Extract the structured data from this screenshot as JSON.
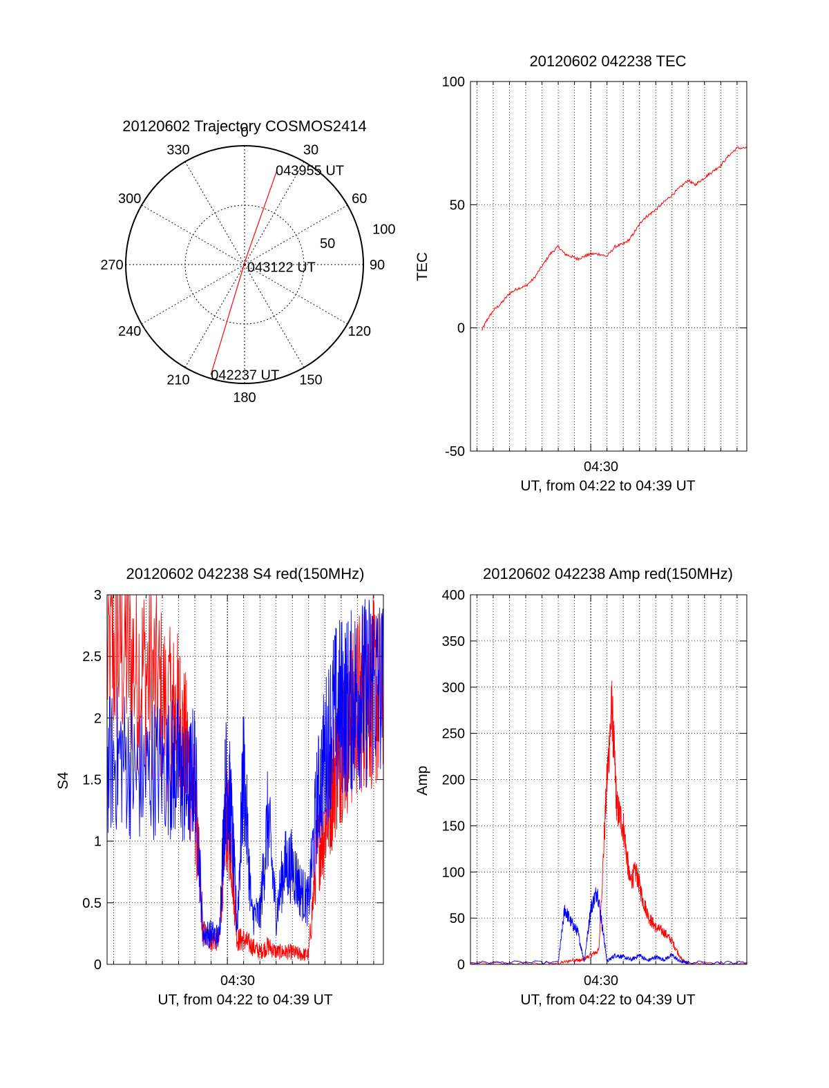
{
  "colors": {
    "red_series": "#ff0000",
    "blue_series": "#0000ff",
    "axes": "#000000",
    "grid": "#000000"
  },
  "chart_data": [
    {
      "id": "trajectory",
      "type": "polar",
      "title": "20120602 Trajectory COSMOS2414",
      "angle_labels": [
        "0",
        "30",
        "60",
        "90",
        "120",
        "150",
        "180",
        "210",
        "240",
        "270",
        "300",
        "330"
      ],
      "angles": [
        0,
        30,
        60,
        90,
        120,
        150,
        180,
        210,
        240,
        270,
        300,
        330
      ],
      "radial_ring_labels": [
        "50",
        "100"
      ],
      "radial_rings": [
        50,
        100
      ],
      "radial_max": 100,
      "grid": true,
      "track": {
        "points": [
          {
            "azimuth": 197,
            "zenith": 97,
            "label": "042237 UT"
          },
          {
            "azimuth": 13,
            "zenith": 5,
            "label": "043122 UT"
          },
          {
            "azimuth": 19,
            "zenith": 84,
            "label": "043955 UT"
          }
        ]
      }
    },
    {
      "id": "tec",
      "type": "line",
      "title": "20120602 042238 TEC",
      "xlabel": "UT, from 04:22 to 04:39 UT",
      "ylabel": "TEC",
      "x_unit": "minutes after 04:00 UT",
      "xlim": [
        22.6,
        39.6
      ],
      "ylim": [
        -50,
        100
      ],
      "yticks": [
        "-50",
        "0",
        "50",
        "100"
      ],
      "xtick_labels": [
        "04:30"
      ],
      "xticks": [
        30
      ],
      "grid": true,
      "series": [
        {
          "color": "#ff0000",
          "x": [
            23.3,
            23.6,
            24.0,
            24.5,
            25.0,
            25.5,
            26.0,
            26.5,
            27.0,
            27.5,
            28.0,
            28.4,
            28.8,
            29.2,
            29.6,
            30.0,
            30.5,
            31.0,
            31.5,
            32.0,
            32.4,
            32.8,
            33.2,
            33.6,
            34.0,
            34.5,
            35.0,
            35.5,
            36.0,
            36.4,
            36.8,
            37.2,
            37.6,
            38.0,
            38.5,
            39.0,
            39.6
          ],
          "y": [
            -1,
            3,
            7,
            10,
            14,
            16,
            17,
            20,
            25,
            30,
            33,
            30,
            29,
            28,
            29,
            30,
            30,
            29,
            33,
            34,
            36,
            40,
            44,
            46,
            48,
            51,
            54,
            57,
            60,
            58,
            60,
            62,
            64,
            66,
            70,
            73,
            73
          ]
        }
      ]
    },
    {
      "id": "s4",
      "type": "line",
      "title": "20120602 042238 S4 red(150MHz)",
      "xlabel": "UT, from 04:22 to 04:39 UT",
      "ylabel": "S4",
      "x_unit": "minutes after 04:00 UT",
      "xlim": [
        22.6,
        39.6
      ],
      "ylim": [
        0,
        3
      ],
      "yticks": [
        "0",
        "0.5",
        "1",
        "1.5",
        "2",
        "2.5",
        "3"
      ],
      "xtick_labels": [
        "04:30"
      ],
      "xticks": [
        30
      ],
      "grid": true,
      "series": [
        {
          "color": "#ff0000",
          "x": [
            22.6,
            23.5,
            24.5,
            25.5,
            26.5,
            27.0,
            27.5,
            28.0,
            28.5,
            29.0,
            29.5,
            29.9,
            30.2,
            30.6,
            31.0,
            31.5,
            32.0,
            32.5,
            33.0,
            33.5,
            34.0,
            34.5,
            35.0,
            35.5,
            36.0,
            36.5,
            37.0,
            37.5,
            38.0,
            38.5,
            39.0,
            39.6
          ],
          "y": [
            2.5,
            2.6,
            2.4,
            2.3,
            2.0,
            2.0,
            1.7,
            1.3,
            0.25,
            0.2,
            0.2,
            1.2,
            1.0,
            0.2,
            0.2,
            0.15,
            0.1,
            0.15,
            0.1,
            0.1,
            0.1,
            0.08,
            0.08,
            0.9,
            1.1,
            1.5,
            1.8,
            1.9,
            2.1,
            2.2,
            2.2,
            2.1
          ]
        },
        {
          "color": "#0000ff",
          "x": [
            22.6,
            23.5,
            24.5,
            25.5,
            26.5,
            27.0,
            27.5,
            28.0,
            28.5,
            29.0,
            29.5,
            29.9,
            30.2,
            30.6,
            31.0,
            31.5,
            32.0,
            32.5,
            33.0,
            33.5,
            34.0,
            34.5,
            35.0,
            35.5,
            36.0,
            36.5,
            37.0,
            37.5,
            38.0,
            38.5,
            39.0,
            39.6
          ],
          "y": [
            1.6,
            1.7,
            1.5,
            1.6,
            1.6,
            1.6,
            1.4,
            1.6,
            0.25,
            0.25,
            0.22,
            1.5,
            1.3,
            0.3,
            1.6,
            0.4,
            0.4,
            1.2,
            0.4,
            0.8,
            0.8,
            0.6,
            0.5,
            1.3,
            1.7,
            2.0,
            2.1,
            2.1,
            2.2,
            2.2,
            2.3,
            2.2
          ]
        }
      ]
    },
    {
      "id": "amp",
      "type": "line",
      "title": "20120602 042238 Amp red(150MHz)",
      "xlabel": "UT, from 04:22 to 04:39 UT",
      "ylabel": "Amp",
      "x_unit": "minutes after 04:00 UT",
      "xlim": [
        22.6,
        39.6
      ],
      "ylim": [
        0,
        400
      ],
      "yticks": [
        "0",
        "50",
        "100",
        "150",
        "200",
        "250",
        "300",
        "350",
        "400"
      ],
      "xtick_labels": [
        "04:30"
      ],
      "xticks": [
        30
      ],
      "grid": true,
      "series": [
        {
          "color": "#ff0000",
          "x": [
            22.6,
            28.0,
            29.0,
            29.4,
            30.0,
            30.5,
            31.0,
            31.3,
            31.6,
            32.0,
            32.4,
            32.8,
            33.2,
            33.6,
            34.0,
            34.5,
            35.0,
            35.6,
            36.0,
            39.6
          ],
          "y": [
            1,
            1,
            5,
            4,
            10,
            15,
            200,
            280,
            170,
            150,
            90,
            100,
            70,
            50,
            40,
            35,
            25,
            5,
            1,
            1
          ]
        },
        {
          "color": "#0000ff",
          "x": [
            22.6,
            28.0,
            28.4,
            28.8,
            29.2,
            29.6,
            30.0,
            30.4,
            30.8,
            31.0,
            31.5,
            32.0,
            32.5,
            33.0,
            33.5,
            34.0,
            34.5,
            35.0,
            35.5,
            36.0,
            39.6
          ],
          "y": [
            2,
            2,
            60,
            45,
            35,
            3,
            60,
            80,
            30,
            3,
            10,
            8,
            5,
            10,
            4,
            8,
            5,
            10,
            3,
            2,
            2
          ]
        }
      ]
    }
  ]
}
